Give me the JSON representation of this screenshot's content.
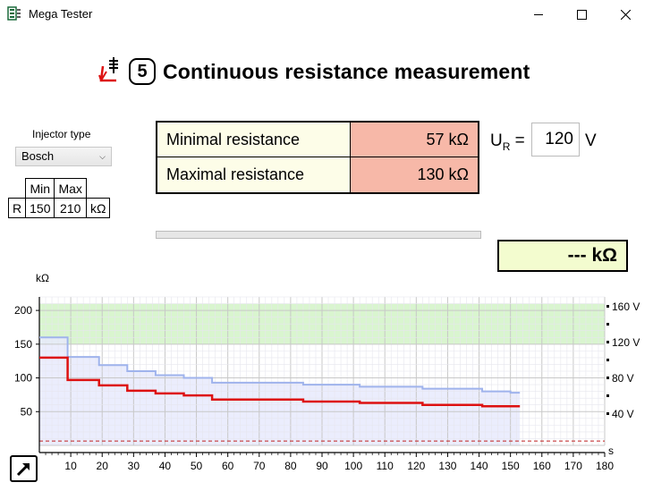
{
  "window": {
    "title": "Mega Tester",
    "minimize_glyph": "—",
    "maximize_glyph": "☐",
    "close_glyph": "✕"
  },
  "heading": {
    "step": "5",
    "title": "Continuous resistance measurement",
    "icon": "injector-ohm-icon"
  },
  "injector": {
    "label": "Injector type",
    "selected": "Bosch",
    "table": {
      "headers": [
        "",
        "Min",
        "Max",
        ""
      ],
      "row": [
        "R",
        "150",
        "210",
        "kΩ"
      ]
    }
  },
  "results": {
    "min_label": "Minimal resistance",
    "min_value": "57 kΩ",
    "max_label": "Maximal resistance",
    "max_value": "130 kΩ"
  },
  "voltage": {
    "label_main": "U",
    "label_sub": "R",
    "label_eq": " =",
    "value": "120",
    "unit": "V"
  },
  "progress": {
    "fraction": 0.0
  },
  "live_reading": "--- kΩ",
  "colors": {
    "min_red": "#dd1111",
    "max_blue": "#9fb3ec",
    "envelope": "#e8eafd",
    "band": "#d9f5cf",
    "cell_red": "#f7b8a8",
    "cell_cream": "#fdfde8",
    "live_green": "#f3fccf"
  },
  "chart_data": {
    "type": "line",
    "ylabel": "kΩ",
    "xlabel_unit": "s",
    "xlim": [
      0,
      180
    ],
    "ylim": [
      0,
      220
    ],
    "y_ticks": [
      "200",
      "150",
      "100",
      "50"
    ],
    "x_ticks": [
      "10",
      "20",
      "30",
      "40",
      "50",
      "60",
      "70",
      "80",
      "90",
      "100",
      "110",
      "120",
      "130",
      "140",
      "150",
      "160",
      "170",
      "180"
    ],
    "right_axis_labels": [
      "160 V",
      "120 V",
      "80 V",
      "40 V"
    ],
    "tolerance_band": [
      150,
      210
    ],
    "voltage_line": 120,
    "series": [
      {
        "color": "#9fb3ec",
        "points": [
          [
            0,
            160
          ],
          [
            9,
            160
          ],
          [
            9,
            131
          ],
          [
            19,
            131
          ],
          [
            19,
            119
          ],
          [
            28,
            119
          ],
          [
            28,
            110
          ],
          [
            37,
            110
          ],
          [
            37,
            104
          ],
          [
            46,
            104
          ],
          [
            46,
            100
          ],
          [
            55,
            100
          ],
          [
            55,
            93
          ],
          [
            70,
            93
          ],
          [
            70,
            93
          ],
          [
            84,
            93
          ],
          [
            84,
            90
          ],
          [
            102,
            90
          ],
          [
            102,
            87
          ],
          [
            122,
            87
          ],
          [
            122,
            84
          ],
          [
            141,
            84
          ],
          [
            141,
            80
          ],
          [
            150,
            80
          ],
          [
            150,
            78
          ],
          [
            153,
            78
          ]
        ]
      },
      {
        "color": "#dd1111",
        "points": [
          [
            0,
            130
          ],
          [
            9,
            130
          ],
          [
            9,
            97
          ],
          [
            19,
            97
          ],
          [
            19,
            89
          ],
          [
            28,
            89
          ],
          [
            28,
            81
          ],
          [
            37,
            81
          ],
          [
            37,
            77
          ],
          [
            46,
            77
          ],
          [
            46,
            74
          ],
          [
            55,
            74
          ],
          [
            55,
            68
          ],
          [
            84,
            68
          ],
          [
            84,
            65
          ],
          [
            102,
            65
          ],
          [
            102,
            63
          ],
          [
            122,
            63
          ],
          [
            122,
            60
          ],
          [
            141,
            60
          ],
          [
            141,
            58
          ],
          [
            153,
            58
          ]
        ]
      }
    ]
  }
}
